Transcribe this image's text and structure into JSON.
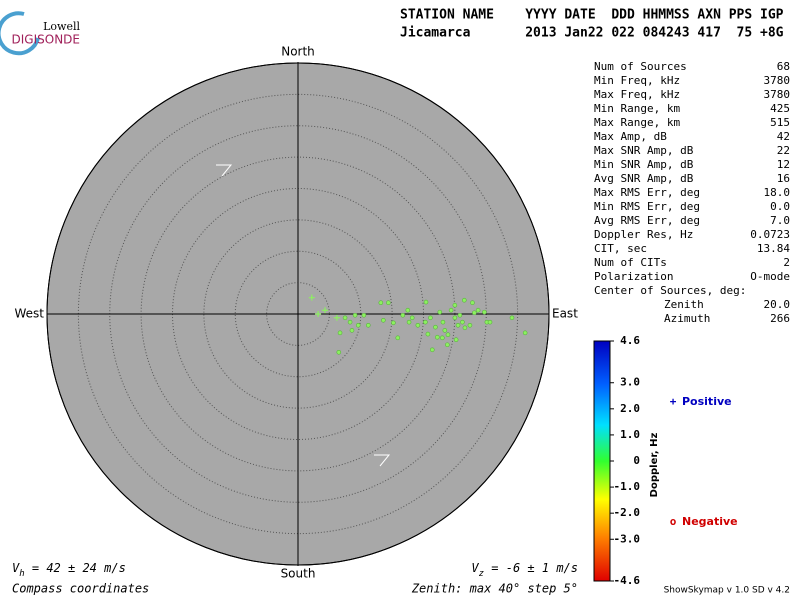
{
  "logo": {
    "top": "Lowell",
    "bottom": "DIGISONDE"
  },
  "header": {
    "columns": "STATION NAME    YYYY DATE  DDD HHMMSS AXN PPS IGP",
    "values": "Jicamarca       2013 Jan22 022 084243 417  75 +8G"
  },
  "stats": {
    "rows": [
      [
        "Num of Sources",
        "68"
      ],
      [
        "Min Freq, kHz",
        "3780"
      ],
      [
        "Max Freq, kHz",
        "3780"
      ],
      [
        "Min Range, km",
        "425"
      ],
      [
        "Max Range, km",
        "515"
      ],
      [
        "Max Amp, dB",
        "42"
      ],
      [
        "Max SNR Amp, dB",
        "22"
      ],
      [
        "Min SNR Amp, dB",
        "12"
      ],
      [
        "Avg SNR Amp, dB",
        "16"
      ],
      [
        "Max RMS Err, deg",
        "18.0"
      ],
      [
        "Min RMS Err, deg",
        "0.0"
      ],
      [
        "Avg RMS Err, deg",
        "7.0"
      ],
      [
        "Doppler Res, Hz",
        "0.0723"
      ],
      [
        "CIT, sec",
        "13.84"
      ],
      [
        "Num of CITs",
        "2"
      ],
      [
        "Polarization",
        "O-mode"
      ]
    ],
    "center_title": "Center of Sources, deg:",
    "center_rows": [
      [
        "Zenith",
        "20.0"
      ],
      [
        "Azimuth",
        "266"
      ]
    ]
  },
  "chart_data": {
    "type": "skymap",
    "directions": {
      "north": "North",
      "south": "South",
      "east": "East",
      "west": "West"
    },
    "rlim": [
      0,
      40
    ],
    "rings": [
      5,
      10,
      15,
      20,
      25,
      30,
      35,
      40
    ],
    "point_color": "#8cf060",
    "series": [
      {
        "name": "Positive",
        "symbol": "+",
        "legend_color": "#0000c0",
        "x": [
          2.2,
          4.3,
          6.2,
          3.2
        ],
        "y": [
          2.6,
          0.6,
          -0.6,
          0.0
        ]
      },
      {
        "name": "Negative",
        "symbol": "o",
        "legend_color": "#d00000",
        "x": [
          13.2,
          14.4,
          20.4,
          26.5,
          25.0,
          27.8,
          7.5,
          8.3,
          9.1,
          9.6,
          10.5,
          6.7,
          6.5,
          13.6,
          15.2,
          15.9,
          17.5,
          17.7,
          18.2,
          20.3,
          20.7,
          21.4,
          22.2,
          22.6,
          23.1,
          23.4,
          23.9,
          24.4,
          25.0,
          25.5,
          26.2,
          26.6,
          27.4,
          28.1,
          28.7,
          29.7,
          30.1,
          30.6,
          34.1,
          36.2,
          19.1,
          21.1,
          21.9,
          23.0,
          23.8,
          25.2,
          25.8,
          16.7,
          11.2,
          8.6
        ],
        "y": [
          1.8,
          1.8,
          1.9,
          2.2,
          1.4,
          1.8,
          -0.6,
          -1.3,
          -0.2,
          -1.8,
          -0.2,
          -3.0,
          -6.1,
          -1.0,
          -1.4,
          -3.8,
          0.6,
          -1.3,
          -0.6,
          -1.3,
          -3.2,
          -5.7,
          -3.7,
          0.3,
          -1.3,
          -2.6,
          -3.3,
          0.6,
          -0.6,
          -1.8,
          -1.3,
          -2.2,
          -1.8,
          0.2,
          0.6,
          0.3,
          -1.3,
          -1.3,
          -0.6,
          -3.0,
          -1.8,
          -0.6,
          -2.1,
          -3.8,
          -4.9,
          -4.1,
          -0.2,
          -0.2,
          -1.8,
          -2.6
        ]
      }
    ],
    "colorbar": {
      "label": "Doppler, Hz",
      "lim": [
        -4.6,
        4.6
      ],
      "ticks": [
        4.6,
        {
          "value": 3,
          "label": "3.0"
        },
        {
          "value": 2,
          "label": "2.0"
        },
        {
          "value": 1,
          "label": "1.0"
        },
        0,
        {
          "value": -1,
          "label": "-1.0"
        },
        {
          "value": -2,
          "label": "-2.0"
        },
        {
          "value": -3,
          "label": "-3.0"
        },
        -4.6
      ]
    },
    "vh": {
      "symbol": "V",
      "sub": "h",
      "text": " = 42 ± 24 m/s"
    },
    "vz": {
      "symbol": "V",
      "sub": "z",
      "text": " = -6 ± 1 m/s"
    },
    "coords_note": "Compass coordinates",
    "zenith_note": "Zenith: max 40°  step 5°",
    "version": "ShowSkymap v 1.0  SD v 4.2"
  }
}
